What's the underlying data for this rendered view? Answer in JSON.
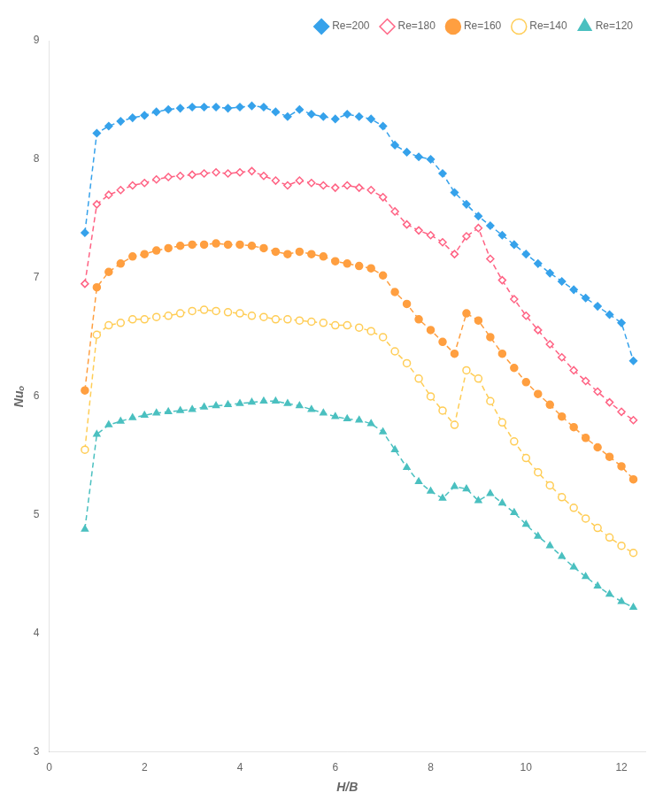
{
  "chart_data": {
    "type": "line",
    "xlabel": "H/B",
    "ylabel": "Nuₒ",
    "xlim": [
      0,
      12.5
    ],
    "ylim": [
      3,
      9
    ],
    "xticks": [
      0,
      2,
      4,
      6,
      8,
      10,
      12
    ],
    "yticks": [
      3,
      4,
      5,
      6,
      7,
      8,
      9
    ],
    "grid": false,
    "legend": "upper right",
    "line_style": "dashed",
    "x": [
      0.75,
      1.0,
      1.25,
      1.5,
      1.75,
      2.0,
      2.25,
      2.5,
      2.75,
      3.0,
      3.25,
      3.5,
      3.75,
      4.0,
      4.25,
      4.5,
      4.75,
      5.0,
      5.25,
      5.5,
      5.75,
      6.0,
      6.25,
      6.5,
      6.75,
      7.0,
      7.25,
      7.5,
      7.75,
      8.0,
      8.25,
      8.5,
      8.75,
      9.0,
      9.25,
      9.5,
      9.75,
      10.0,
      10.25,
      10.5,
      10.75,
      11.0,
      11.25,
      11.5,
      11.75,
      12.0,
      12.25
    ],
    "series": [
      {
        "name": "Re=200",
        "marker": "diamond",
        "values": [
          7.38,
          8.22,
          8.28,
          8.32,
          8.35,
          8.37,
          8.4,
          8.42,
          8.43,
          8.44,
          8.44,
          8.44,
          8.43,
          8.44,
          8.45,
          8.44,
          8.4,
          8.36,
          8.42,
          8.38,
          8.36,
          8.34,
          8.38,
          8.36,
          8.34,
          8.28,
          8.12,
          8.06,
          8.02,
          8.0,
          7.88,
          7.72,
          7.62,
          7.52,
          7.44,
          7.36,
          7.28,
          7.2,
          7.12,
          7.04,
          6.97,
          6.9,
          6.83,
          6.76,
          6.69,
          6.62,
          6.3
        ]
      },
      {
        "name": "Re=180",
        "marker": "open-diamond",
        "values": [
          6.95,
          7.62,
          7.7,
          7.74,
          7.78,
          7.8,
          7.83,
          7.85,
          7.86,
          7.87,
          7.88,
          7.89,
          7.88,
          7.89,
          7.9,
          7.86,
          7.82,
          7.78,
          7.82,
          7.8,
          7.78,
          7.76,
          7.78,
          7.76,
          7.74,
          7.68,
          7.56,
          7.45,
          7.4,
          7.36,
          7.3,
          7.2,
          7.35,
          7.42,
          7.16,
          6.98,
          6.82,
          6.68,
          6.56,
          6.44,
          6.33,
          6.22,
          6.13,
          6.04,
          5.95,
          5.87,
          5.8
        ]
      },
      {
        "name": "Re=160",
        "marker": "circle",
        "values": [
          6.05,
          6.92,
          7.05,
          7.12,
          7.18,
          7.2,
          7.23,
          7.25,
          7.27,
          7.28,
          7.28,
          7.29,
          7.28,
          7.28,
          7.27,
          7.25,
          7.22,
          7.2,
          7.22,
          7.2,
          7.18,
          7.14,
          7.12,
          7.1,
          7.08,
          7.02,
          6.88,
          6.78,
          6.65,
          6.56,
          6.46,
          6.36,
          6.7,
          6.64,
          6.5,
          6.36,
          6.24,
          6.12,
          6.02,
          5.93,
          5.83,
          5.74,
          5.65,
          5.57,
          5.49,
          5.41,
          5.3
        ]
      },
      {
        "name": "Re=140",
        "marker": "open-circle",
        "values": [
          5.55,
          6.52,
          6.6,
          6.62,
          6.65,
          6.65,
          6.67,
          6.68,
          6.7,
          6.72,
          6.73,
          6.72,
          6.71,
          6.7,
          6.68,
          6.67,
          6.65,
          6.65,
          6.64,
          6.63,
          6.62,
          6.6,
          6.6,
          6.58,
          6.55,
          6.5,
          6.38,
          6.28,
          6.15,
          6.0,
          5.88,
          5.76,
          6.22,
          6.15,
          5.96,
          5.78,
          5.62,
          5.48,
          5.36,
          5.25,
          5.15,
          5.06,
          4.97,
          4.89,
          4.81,
          4.74,
          4.68
        ]
      },
      {
        "name": "Re=120",
        "marker": "triangle",
        "values": [
          4.88,
          5.68,
          5.76,
          5.79,
          5.82,
          5.84,
          5.86,
          5.87,
          5.88,
          5.89,
          5.91,
          5.92,
          5.93,
          5.94,
          5.95,
          5.96,
          5.96,
          5.94,
          5.92,
          5.89,
          5.86,
          5.83,
          5.81,
          5.8,
          5.77,
          5.7,
          5.55,
          5.4,
          5.28,
          5.2,
          5.14,
          5.24,
          5.22,
          5.12,
          5.18,
          5.1,
          5.02,
          4.92,
          4.82,
          4.74,
          4.65,
          4.56,
          4.48,
          4.4,
          4.33,
          4.27,
          4.22
        ]
      }
    ]
  }
}
